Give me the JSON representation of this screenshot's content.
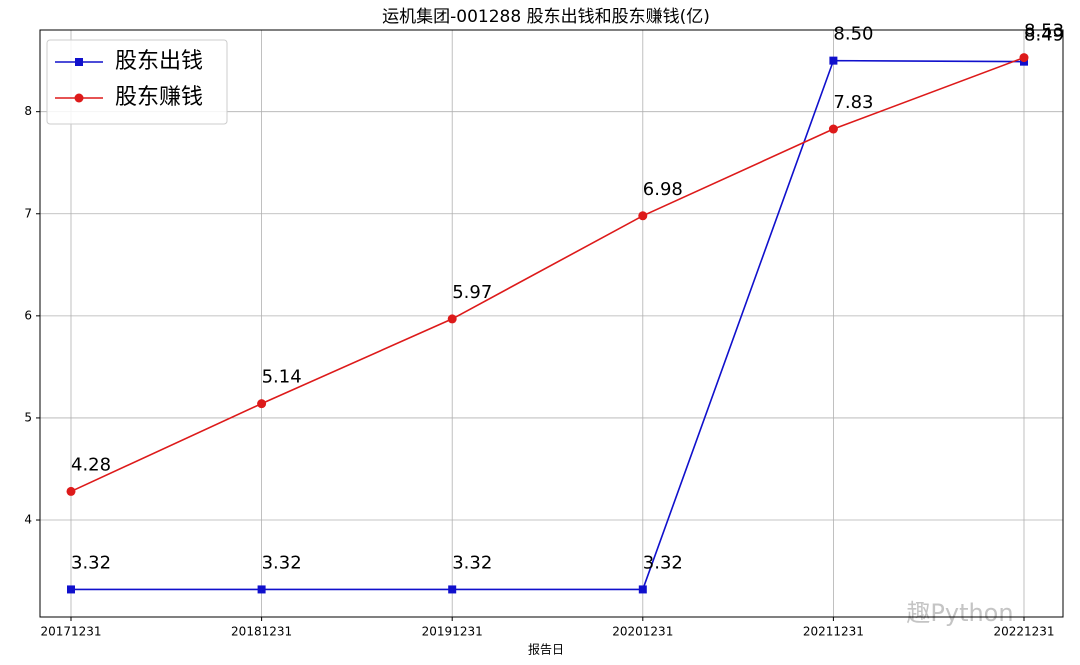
{
  "chart_data": {
    "type": "line",
    "title": "运机集团-001288 股东出钱和股东赚钱(亿)",
    "x_label": "报告日",
    "watermark": "趣Python",
    "categories": [
      "20171231",
      "20181231",
      "20191231",
      "20201231",
      "20211231",
      "20221231"
    ],
    "series": [
      {
        "name": "股东出钱",
        "color": "#1010cc",
        "marker": "square",
        "values": [
          3.32,
          3.32,
          3.32,
          3.32,
          8.5,
          8.49
        ],
        "value_labels": [
          "3.32",
          "3.32",
          "3.32",
          "3.32",
          "8.50",
          "8.49"
        ]
      },
      {
        "name": "股东赚钱",
        "color": "#dd1a1a",
        "marker": "circle",
        "values": [
          4.28,
          5.14,
          5.97,
          6.98,
          7.83,
          8.53
        ]
      }
    ],
    "ylim": [
      3.05,
      8.8
    ],
    "yticks": [
      4,
      5,
      6,
      7,
      8
    ],
    "grid": true,
    "legend": "upper left"
  }
}
